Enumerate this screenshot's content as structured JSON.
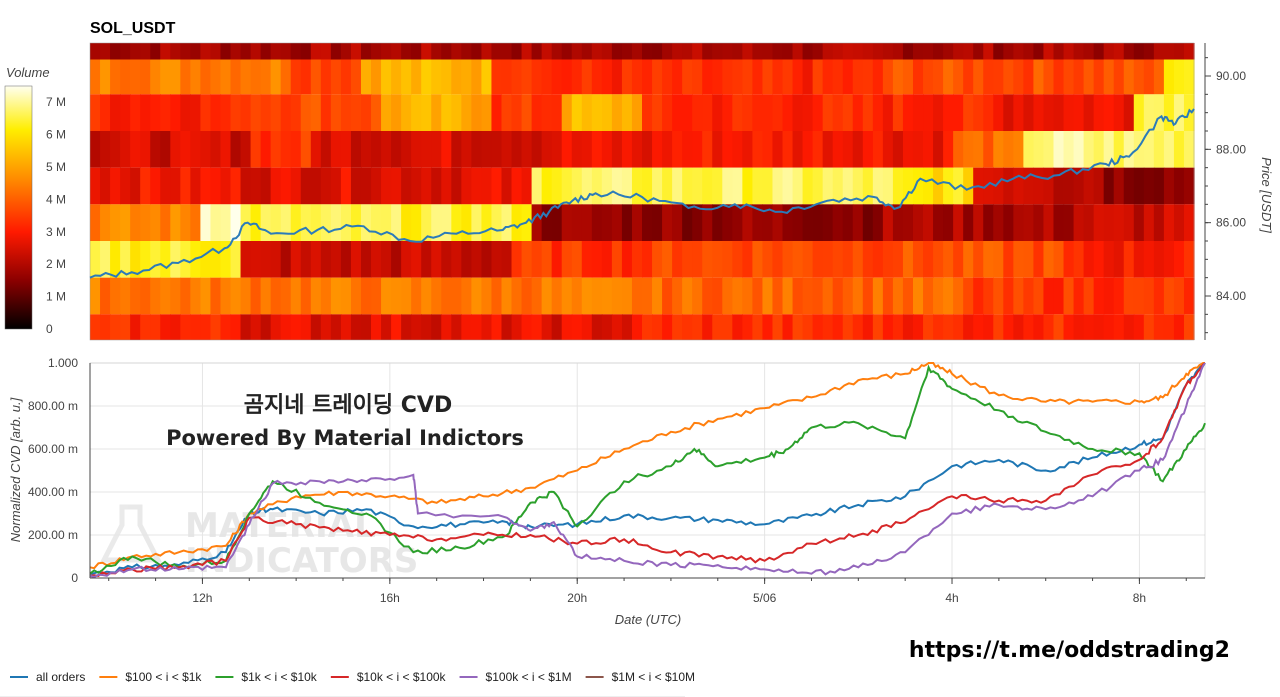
{
  "title": "SOL_USDT",
  "watermark": {
    "line1": "곰지네 트레이딩 CVD",
    "line2": "Powered By Material Indictors",
    "logo_lines": [
      "MATERIAL",
      "INDICATORS"
    ]
  },
  "link": "https://t.me/oddstrading2",
  "colors": {
    "price_line": "#2b7bb9",
    "all_orders": "#1f77b4",
    "s100_1k": "#ff7f0e",
    "s1k_10k": "#2ca02c",
    "s10k_100k": "#d62728",
    "s100k_1m": "#9467bd",
    "s1m_10m": "#8c564b"
  },
  "chart_data": [
    {
      "type": "heatmap",
      "title": "SOL_USDT",
      "ylabel": "Price [USDT]",
      "ylim": [
        82.8,
        90.9
      ],
      "yticks": [
        "84.00",
        "86.00",
        "88.00",
        "90.00"
      ],
      "colorbar": {
        "title": "Volume",
        "ticks": [
          "0",
          "1 M",
          "2 M",
          "3 M",
          "4 M",
          "5 M",
          "6 M",
          "7 M"
        ],
        "range": [
          0,
          7.5
        ]
      },
      "price_bands": [
        90.9,
        90.45,
        89.5,
        88.5,
        87.5,
        86.5,
        85.5,
        84.5,
        83.5,
        82.8
      ],
      "x_range_hours": [
        9.6,
        33.4
      ],
      "price_series": {
        "name": "price",
        "x": [
          9.6,
          10.5,
          11.5,
          12.5,
          13.0,
          13.5,
          14.5,
          15.5,
          16.5,
          17.5,
          18.5,
          19.0,
          19.5,
          20.0,
          20.5,
          21.5,
          22.5,
          23.5,
          24.5,
          25.5,
          26.5,
          27.0,
          27.5,
          28.5,
          29.5,
          30.5,
          31.5,
          32.0,
          32.7,
          33.0,
          33.4
        ],
        "y": [
          84.5,
          84.65,
          84.9,
          85.3,
          86.0,
          85.7,
          85.8,
          85.9,
          85.5,
          85.7,
          85.8,
          86.0,
          86.3,
          86.6,
          86.8,
          86.7,
          86.4,
          86.5,
          86.3,
          86.6,
          86.7,
          86.4,
          87.2,
          86.9,
          87.2,
          87.3,
          87.6,
          87.8,
          88.9,
          88.7,
          89.1
        ]
      }
    },
    {
      "type": "line",
      "xlabel": "Date (UTC)",
      "ylabel": "Normalized CVD [arb. u.]",
      "ylim": [
        0,
        1.0
      ],
      "yticks": [
        "0",
        "200.00 m",
        "400.00 m",
        "600.00 m",
        "800.00 m",
        "1.000"
      ],
      "xticks": [
        "12h",
        "16h",
        "20h",
        "5/06",
        "4h",
        "8h"
      ],
      "series": [
        {
          "name": "all orders",
          "x": [
            9.6,
            10.5,
            11.5,
            12.5,
            13.0,
            13.5,
            14.5,
            15.5,
            16.5,
            17.5,
            18.5,
            19.0,
            20.0,
            21.0,
            22.0,
            23.0,
            24.0,
            25.0,
            26.0,
            27.0,
            28.0,
            29.0,
            30.0,
            31.0,
            32.0,
            32.5,
            33.0,
            33.4
          ],
          "y": [
            0.02,
            0.05,
            0.06,
            0.12,
            0.3,
            0.32,
            0.3,
            0.32,
            0.24,
            0.25,
            0.26,
            0.24,
            0.25,
            0.29,
            0.28,
            0.27,
            0.25,
            0.29,
            0.34,
            0.38,
            0.52,
            0.55,
            0.5,
            0.56,
            0.62,
            0.65,
            0.9,
            1.0
          ]
        },
        {
          "name": "$100 < i < $1k",
          "x": [
            9.6,
            10.5,
            11.5,
            12.5,
            13.0,
            14.0,
            15.0,
            16.0,
            17.0,
            18.0,
            19.0,
            20.0,
            21.0,
            22.0,
            23.0,
            24.0,
            25.0,
            26.0,
            27.0,
            27.5,
            28.0,
            29.0,
            30.0,
            31.0,
            32.0,
            32.5,
            33.0,
            33.4
          ],
          "y": [
            0.05,
            0.1,
            0.12,
            0.15,
            0.3,
            0.38,
            0.4,
            0.38,
            0.35,
            0.38,
            0.42,
            0.5,
            0.6,
            0.68,
            0.74,
            0.79,
            0.84,
            0.92,
            0.95,
            1.0,
            0.95,
            0.85,
            0.82,
            0.82,
            0.82,
            0.84,
            0.95,
            1.0
          ]
        },
        {
          "name": "$1k < i < $10k",
          "x": [
            9.6,
            10.5,
            11.5,
            12.5,
            13.0,
            13.5,
            14.5,
            15.5,
            16.5,
            17.5,
            18.5,
            19.0,
            19.5,
            20.0,
            21.0,
            22.0,
            22.5,
            23.0,
            24.0,
            24.5,
            25.0,
            26.0,
            27.0,
            27.5,
            28.0,
            29.0,
            30.0,
            31.0,
            32.0,
            32.5,
            33.0,
            33.4
          ],
          "y": [
            0.02,
            0.1,
            0.05,
            0.08,
            0.3,
            0.45,
            0.35,
            0.3,
            0.12,
            0.14,
            0.2,
            0.35,
            0.4,
            0.24,
            0.45,
            0.52,
            0.6,
            0.52,
            0.56,
            0.6,
            0.7,
            0.72,
            0.65,
            0.98,
            0.88,
            0.78,
            0.68,
            0.6,
            0.58,
            0.45,
            0.6,
            0.72
          ]
        },
        {
          "name": "$10k < i < $100k",
          "x": [
            9.6,
            10.5,
            11.5,
            12.5,
            13.0,
            14.0,
            15.0,
            16.0,
            17.0,
            18.0,
            19.0,
            20.0,
            21.0,
            22.0,
            23.0,
            24.0,
            25.0,
            26.0,
            27.0,
            28.0,
            29.0,
            30.0,
            31.0,
            32.0,
            32.5,
            33.0,
            33.4
          ],
          "y": [
            0.01,
            0.04,
            0.05,
            0.08,
            0.28,
            0.25,
            0.22,
            0.2,
            0.18,
            0.2,
            0.2,
            0.16,
            0.18,
            0.12,
            0.1,
            0.08,
            0.16,
            0.2,
            0.26,
            0.38,
            0.36,
            0.36,
            0.48,
            0.55,
            0.65,
            0.9,
            1.0
          ]
        },
        {
          "name": "$100k < i < $1M",
          "x": [
            9.6,
            10.5,
            11.5,
            12.5,
            13.0,
            13.5,
            14.5,
            15.5,
            16.5,
            16.6,
            18.5,
            19.0,
            19.5,
            20.0,
            21.0,
            22.0,
            23.0,
            24.0,
            25.0,
            26.0,
            27.0,
            28.0,
            29.0,
            30.0,
            31.0,
            32.0,
            32.5,
            33.0,
            33.4
          ],
          "y": [
            0.01,
            0.04,
            0.04,
            0.05,
            0.25,
            0.44,
            0.45,
            0.45,
            0.48,
            0.3,
            0.28,
            0.22,
            0.26,
            0.1,
            0.08,
            0.06,
            0.06,
            0.04,
            0.02,
            0.05,
            0.12,
            0.3,
            0.34,
            0.32,
            0.38,
            0.5,
            0.55,
            0.8,
            1.0
          ]
        },
        {
          "name": "$1M < i < $10M",
          "x": [],
          "y": []
        }
      ]
    }
  ]
}
